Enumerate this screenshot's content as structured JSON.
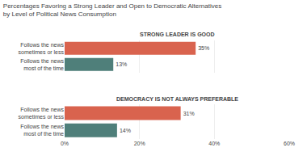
{
  "title": "Percentages Favoring a Strong Leader and Open to Democratic Alternatives\nby Level of Political News Consumption",
  "chart_data": [
    {
      "type": "bar",
      "orientation": "horizontal",
      "title": "STRONG LEADER IS GOOD",
      "categories": [
        "Follows the news\nsometimes or less",
        "Follows the news\nmost of the time"
      ],
      "values": [
        35,
        13
      ],
      "value_labels": [
        "35%",
        "13%"
      ],
      "data_labels": true,
      "colors": [
        "#d9634e",
        "#4f7f7a"
      ],
      "xlim": [
        0,
        60
      ],
      "xticks": [
        {
          "value": 0,
          "label": "0%"
        },
        {
          "value": 20,
          "label": "20%"
        },
        {
          "value": 40,
          "label": "40%"
        },
        {
          "value": 60,
          "label": "60%"
        }
      ],
      "grid": true,
      "tick_labels": "y"
    },
    {
      "type": "bar",
      "orientation": "horizontal",
      "title": "DEMOCRACY IS NOT ALWAYS PREFERABLE",
      "categories": [
        "Follows the news\nsometimes or less",
        "Follows the news\nmost of the time"
      ],
      "values": [
        31,
        14
      ],
      "value_labels": [
        "31%",
        "14%"
      ],
      "data_labels": true,
      "colors": [
        "#d9634e",
        "#4f7f7a"
      ],
      "xlim": [
        0,
        60
      ],
      "xticks": [
        {
          "value": 0,
          "label": "0%"
        },
        {
          "value": 20,
          "label": "20%"
        },
        {
          "value": 40,
          "label": "40%"
        },
        {
          "value": 60,
          "label": "60%"
        }
      ],
      "grid": true
    }
  ]
}
